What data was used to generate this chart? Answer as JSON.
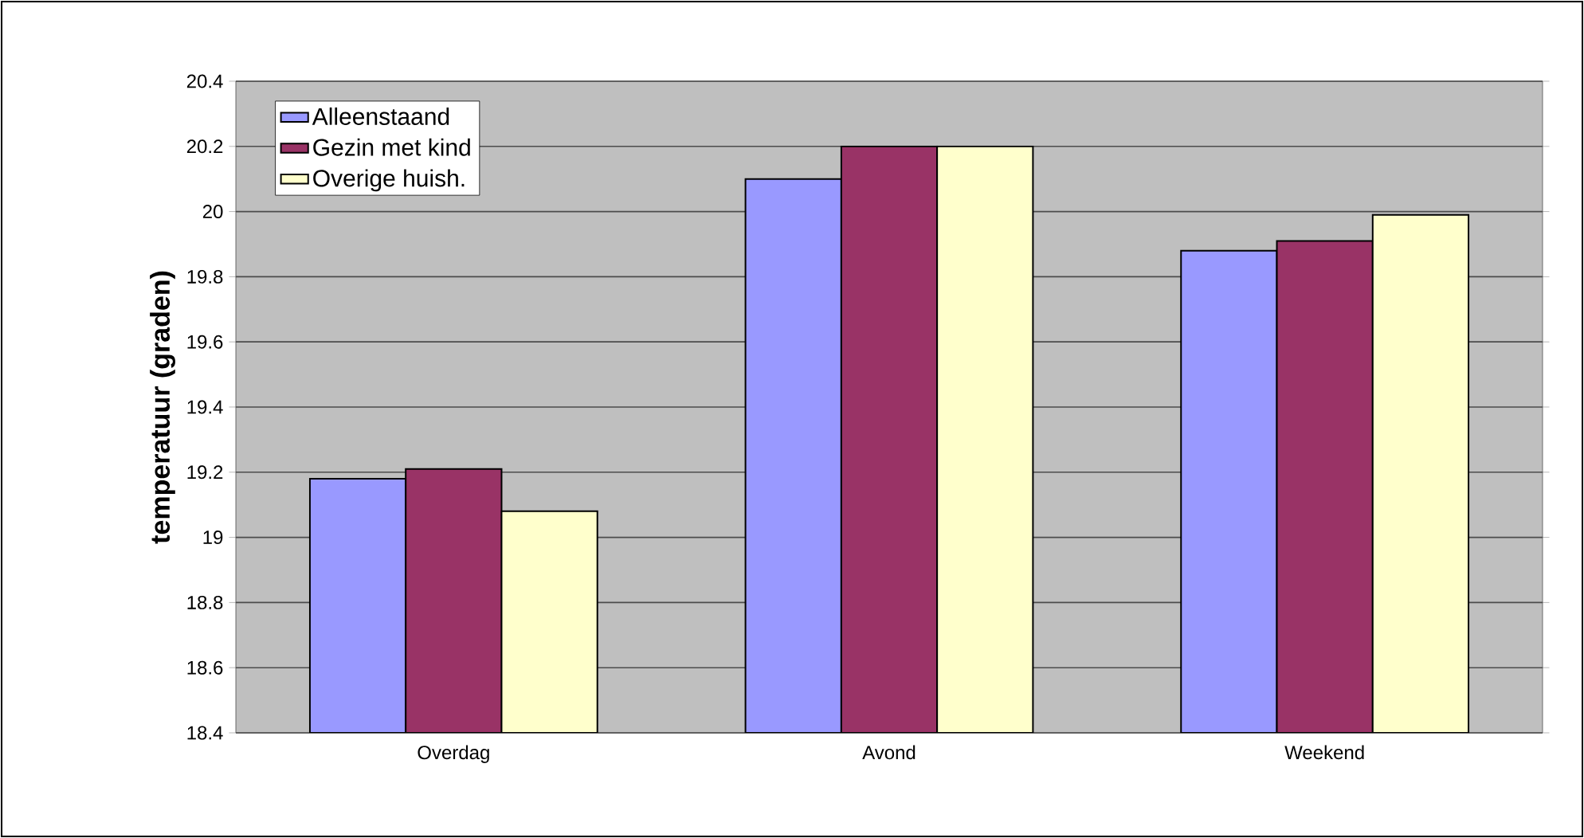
{
  "chart_data": {
    "type": "bar",
    "ylabel": "temperatuur (graden)",
    "categories": [
      "Overdag",
      "Avond",
      "Weekend"
    ],
    "series": [
      {
        "name": "Alleenstaand",
        "color": "#9999ff",
        "values": [
          19.18,
          20.1,
          19.88
        ]
      },
      {
        "name": "Gezin met kind",
        "color": "#993366",
        "values": [
          19.21,
          20.2,
          19.91
        ]
      },
      {
        "name": "Overige huish.",
        "color": "#ffffcc",
        "values": [
          19.08,
          20.2,
          19.99
        ]
      }
    ],
    "ylim": [
      18.4,
      20.4
    ],
    "yticks": [
      18.4,
      18.6,
      18.8,
      19,
      19.2,
      19.4,
      19.6,
      19.8,
      20,
      20.2,
      20.4
    ],
    "grid": "y",
    "legend": "top left"
  }
}
